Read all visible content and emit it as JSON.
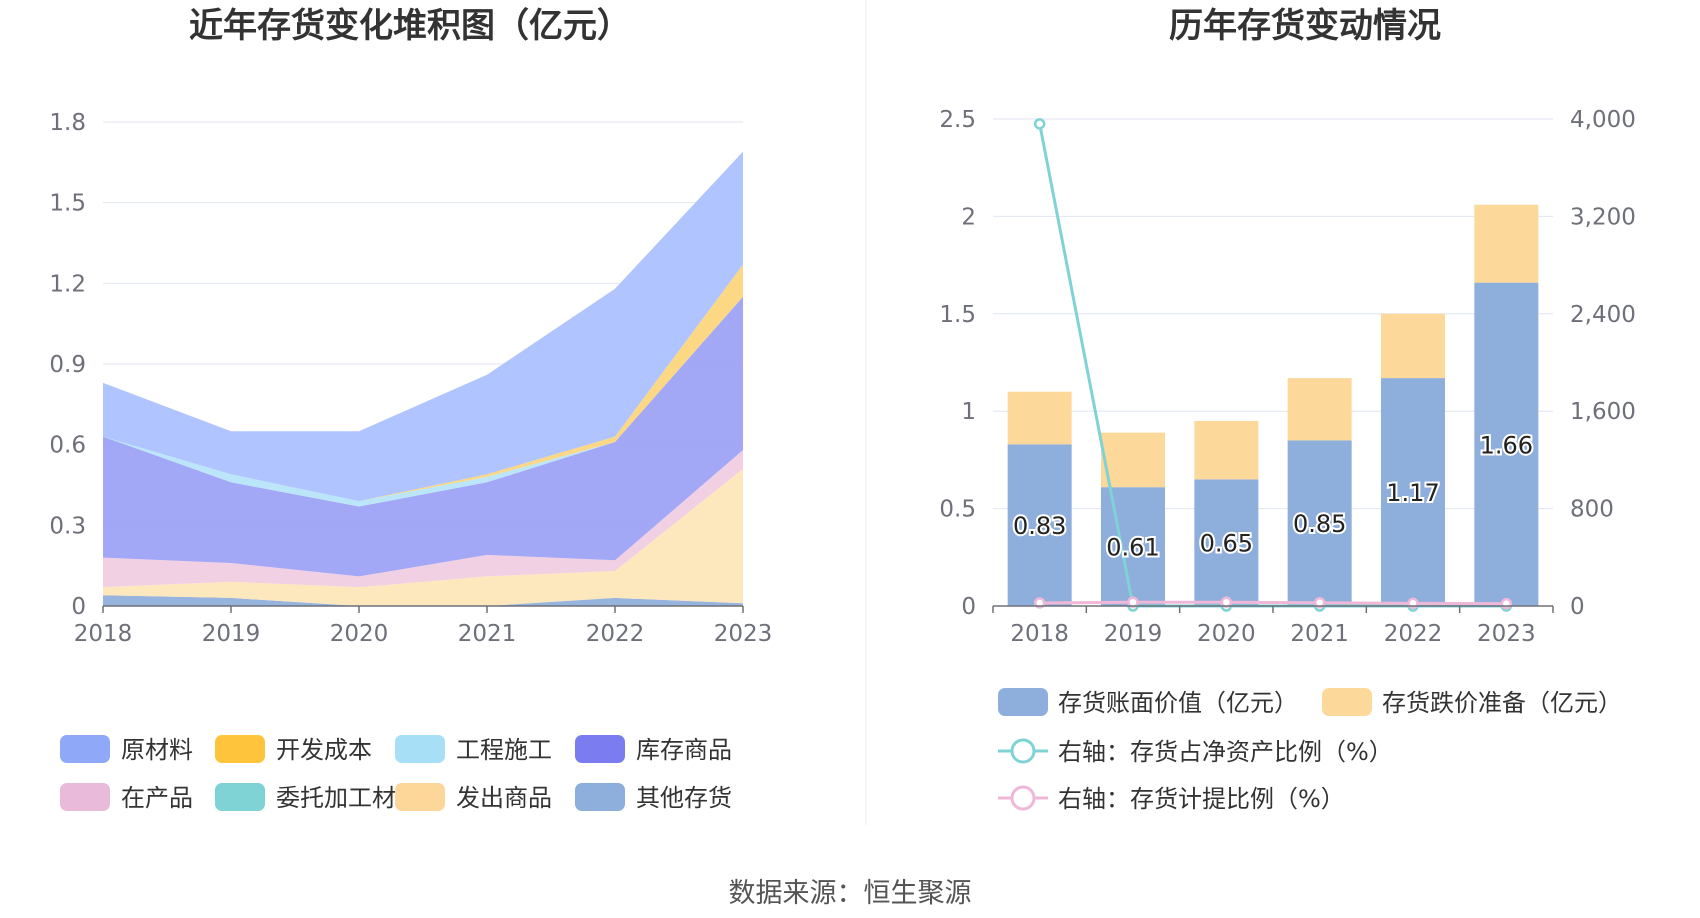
{
  "source_label": "数据来源：恒生聚源",
  "chart_data": [
    {
      "type": "area",
      "title": "近年存货变化堆积图（亿元）",
      "x": [
        "2018",
        "2019",
        "2020",
        "2021",
        "2022",
        "2023"
      ],
      "ylim": [
        0,
        1.8
      ],
      "yticks": [
        "0",
        "0.3",
        "0.6",
        "0.9",
        "1.2",
        "1.5",
        "1.8"
      ],
      "grid": true,
      "legend_position": "bottom",
      "series": [
        {
          "name": "其他存货",
          "color": "#8eaedc",
          "values": [
            0.04,
            0.03,
            0.0,
            0.0,
            0.03,
            0.01
          ]
        },
        {
          "name": "发出商品",
          "color": "#fde6b8",
          "values": [
            0.03,
            0.06,
            0.07,
            0.11,
            0.1,
            0.5
          ]
        },
        {
          "name": "委托加工材料",
          "color": "#7fd3d4",
          "values": [
            0.0,
            0.0,
            0.0,
            0.0,
            0.0,
            0.0
          ]
        },
        {
          "name": "在产品",
          "color": "#f0cce2",
          "values": [
            0.11,
            0.07,
            0.04,
            0.08,
            0.04,
            0.07
          ]
        },
        {
          "name": "库存商品",
          "color": "#9a9ff5",
          "values": [
            0.45,
            0.3,
            0.26,
            0.27,
            0.44,
            0.57
          ]
        },
        {
          "name": "工程施工",
          "color": "#b5e3f7",
          "values": [
            0.0,
            0.03,
            0.02,
            0.02,
            0.0,
            0.0
          ]
        },
        {
          "name": "开发成本",
          "color": "#fcd57a",
          "values": [
            0.0,
            0.0,
            0.0,
            0.01,
            0.02,
            0.12
          ]
        },
        {
          "name": "原材料",
          "color": "#a9bfff",
          "values": [
            0.2,
            0.16,
            0.26,
            0.37,
            0.55,
            0.42
          ]
        }
      ],
      "legend": [
        {
          "name": "原材料",
          "color": "#8fa8f8"
        },
        {
          "name": "开发成本",
          "color": "#fdc43c"
        },
        {
          "name": "工程施工",
          "color": "#a6dff6"
        },
        {
          "name": "库存商品",
          "color": "#7b7cf0"
        },
        {
          "name": "在产品",
          "color": "#e9bada"
        },
        {
          "name": "委托加工材料",
          "color": "#7fd3d4"
        },
        {
          "name": "发出商品",
          "color": "#fdd69a"
        },
        {
          "name": "其他存货",
          "color": "#8eaedc"
        }
      ]
    },
    {
      "type": "bar",
      "title": "历年存货变动情况",
      "x": [
        "2018",
        "2019",
        "2020",
        "2021",
        "2022",
        "2023"
      ],
      "ylim_left": [
        0,
        2.5
      ],
      "yticks_left": [
        "0",
        "0.5",
        "1",
        "1.5",
        "2",
        "2.5"
      ],
      "ylim_right": [
        0,
        4000
      ],
      "yticks_right": [
        "0",
        "800",
        "1,600",
        "2,400",
        "3,200",
        "4,000"
      ],
      "grid": true,
      "legend_position": "bottom",
      "series": [
        {
          "name": "存货账面价值（亿元）",
          "kind": "bar",
          "color": "#8eaedc",
          "values": [
            0.83,
            0.61,
            0.65,
            0.85,
            1.17,
            1.66
          ],
          "labels": [
            "0.83",
            "0.61",
            "0.65",
            "0.85",
            "1.17",
            "1.66"
          ]
        },
        {
          "name": "存货跌价准备（亿元）",
          "kind": "bar",
          "color": "#fdd89b",
          "values": [
            0.27,
            0.28,
            0.3,
            0.32,
            0.33,
            0.4
          ]
        },
        {
          "name": "右轴：存货占净资产比例（%）",
          "kind": "line",
          "axis": "right",
          "color": "#7fd3d4",
          "values": [
            3960,
            0,
            0,
            0,
            0,
            0
          ]
        },
        {
          "name": "右轴：存货计提比例（%）",
          "kind": "line",
          "axis": "right",
          "color": "#f0b8d8",
          "values": [
            25,
            31,
            31,
            27,
            22,
            19
          ]
        }
      ]
    }
  ]
}
